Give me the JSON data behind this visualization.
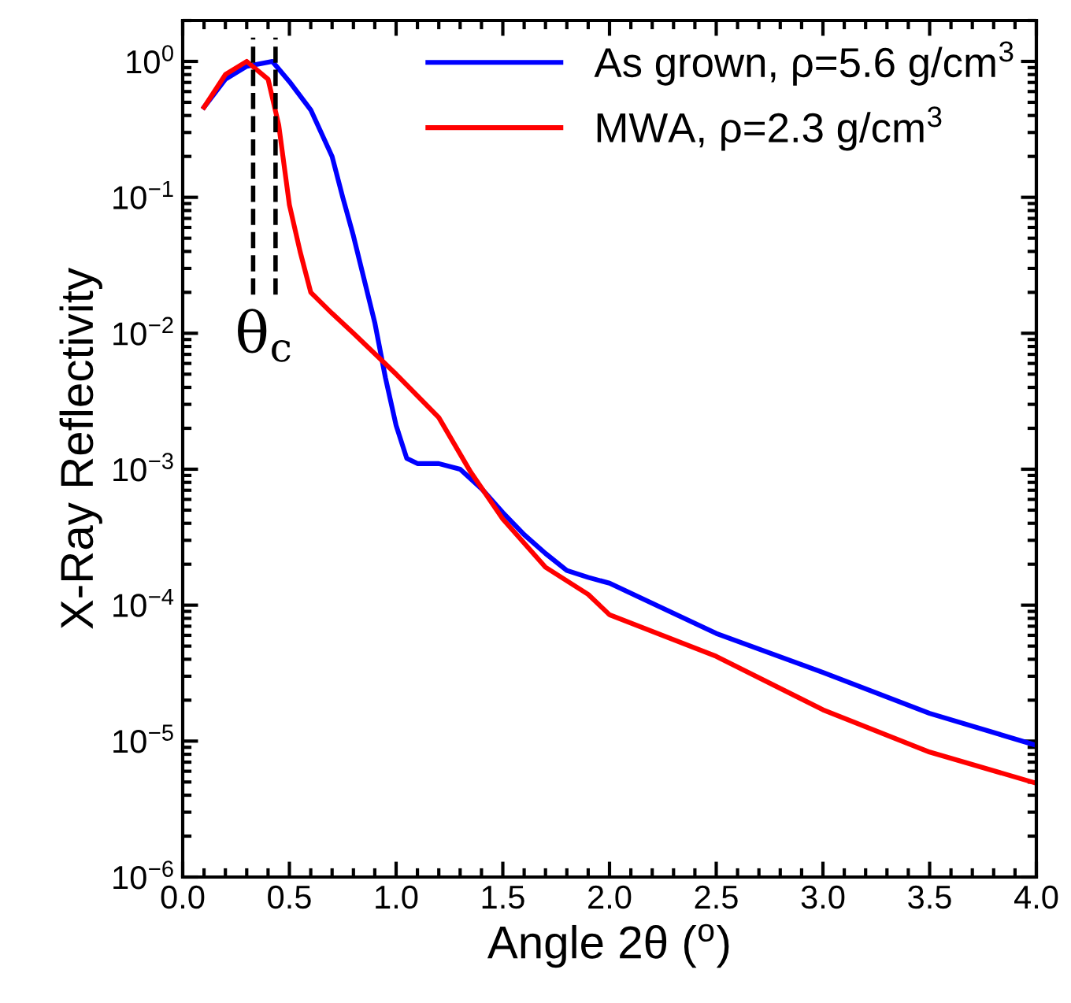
{
  "chart_data": {
    "type": "line",
    "xlabel": "Angle 2θ ($^{o}$)",
    "ylabel": "X-Ray Reflectivity",
    "log": "y",
    "xlim": [
      0,
      4
    ],
    "ylim": [
      1e-06,
      2
    ],
    "xticks": [
      {
        "value": 0,
        "label": "0.0"
      },
      {
        "value": 0.5,
        "label": "0.5"
      },
      {
        "value": 1,
        "label": "1.0"
      },
      {
        "value": 1.5,
        "label": "1.5"
      },
      {
        "value": 2,
        "label": "2.0"
      },
      {
        "value": 2.5,
        "label": "2.5"
      },
      {
        "value": 3,
        "label": "3.0"
      },
      {
        "value": 3.5,
        "label": "3.5"
      },
      {
        "value": 4,
        "label": "4.0"
      }
    ],
    "yticks": [
      {
        "value": 1e-06,
        "label": "10$^{−6}$"
      },
      {
        "value": 1e-05,
        "label": "10$^{−5}$"
      },
      {
        "value": 0.0001,
        "label": "10$^{−4}$"
      },
      {
        "value": 0.001,
        "label": "10$^{−3}$"
      },
      {
        "value": 0.01,
        "label": "10$^{−2}$"
      },
      {
        "value": 0.1,
        "label": "10$^{−1}$"
      },
      {
        "value": 1,
        "label": "10$^{0}$"
      }
    ],
    "legend": "top right",
    "grid": false,
    "series": [
      {
        "name": "As grown, ρ=5.6 g/cm$^{3}$",
        "color": "#0000ff",
        "x": [
          0.1,
          0.2,
          0.3,
          0.42,
          0.5,
          0.6,
          0.7,
          0.75,
          0.8,
          0.9,
          0.95,
          1.0,
          1.05,
          1.1,
          1.2,
          1.3,
          1.4,
          1.5,
          1.6,
          1.7,
          1.8,
          1.9,
          2.0,
          2.5,
          3.0,
          3.5,
          4.0
        ],
        "values": [
          0.46,
          0.74,
          0.92,
          1.0,
          0.71,
          0.44,
          0.2,
          0.1,
          0.052,
          0.012,
          0.0047,
          0.0021,
          0.0012,
          0.0011,
          0.0011,
          0.001,
          0.00072,
          0.00048,
          0.00033,
          0.00024,
          0.00018,
          0.00016,
          0.000145,
          6.2e-05,
          3.2e-05,
          1.6e-05,
          9.3e-06
        ]
      },
      {
        "name": "MWA, ρ=2.3 g/cm$^{3}$",
        "color": "#ff0000",
        "x": [
          0.1,
          0.2,
          0.3,
          0.4,
          0.45,
          0.5,
          0.55,
          0.6,
          0.7,
          0.8,
          1.0,
          1.2,
          1.35,
          1.5,
          1.7,
          1.9,
          2.0,
          2.5,
          3.0,
          3.5,
          4.0
        ],
        "values": [
          0.46,
          0.8,
          1.0,
          0.74,
          0.34,
          0.088,
          0.04,
          0.02,
          0.014,
          0.01,
          0.005,
          0.0024,
          0.00095,
          0.00043,
          0.00019,
          0.00012,
          8.5e-05,
          4.2e-05,
          1.7e-05,
          8.3e-06,
          4.9e-06
        ]
      }
    ],
    "ref_lines": [
      {
        "axis": "x",
        "value": 0.33,
        "color": "#000000",
        "line_style": "dashed"
      },
      {
        "axis": "x",
        "value": 0.435,
        "color": "#000000",
        "line_style": "dashed"
      }
    ],
    "annotations": [
      "θ$_{c}$"
    ]
  }
}
